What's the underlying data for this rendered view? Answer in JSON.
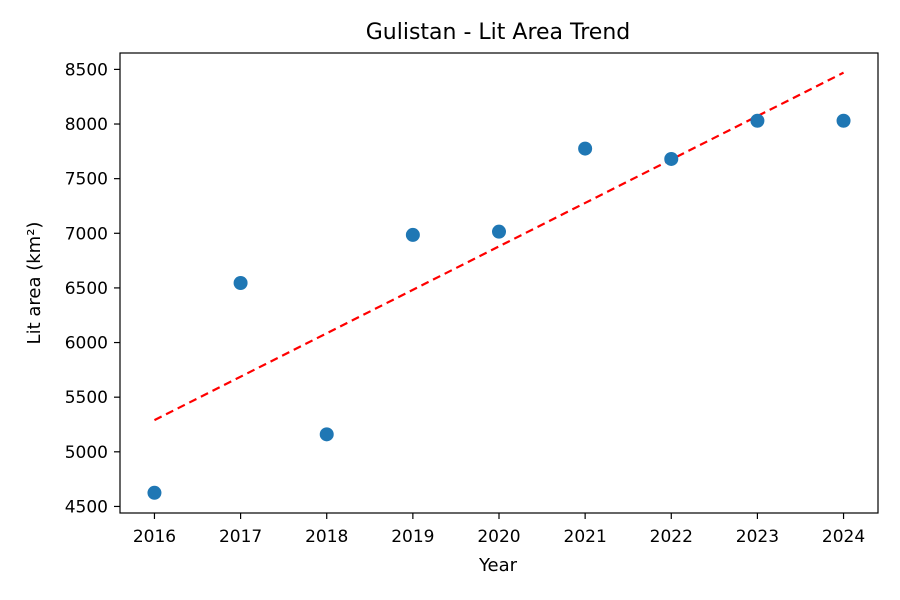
{
  "chart_data": {
    "type": "scatter",
    "title": "Gulistan - Lit Area Trend",
    "xlabel": "Year",
    "ylabel": "Lit area (km²)",
    "xlim": [
      2015.6,
      2024.4
    ],
    "ylim": [
      4440,
      8650
    ],
    "xticks": [
      "2016",
      "2017",
      "2018",
      "2019",
      "2020",
      "2021",
      "2022",
      "2023",
      "2024"
    ],
    "yticks": [
      "4500",
      "5000",
      "5500",
      "6000",
      "6500",
      "7000",
      "7500",
      "8000",
      "8500"
    ],
    "grid": false,
    "colors": {
      "points": "#1f77b4",
      "trend": "#ff0000"
    },
    "points": [
      {
        "x": 2016,
        "y": 4625
      },
      {
        "x": 2017,
        "y": 6545
      },
      {
        "x": 2018,
        "y": 5160
      },
      {
        "x": 2019,
        "y": 6985
      },
      {
        "x": 2020,
        "y": 7015
      },
      {
        "x": 2021,
        "y": 7775
      },
      {
        "x": 2022,
        "y": 7680
      },
      {
        "x": 2023,
        "y": 8030
      },
      {
        "x": 2024,
        "y": 8030
      }
    ],
    "trend_line": {
      "style": "dashed",
      "x": [
        2016,
        2024
      ],
      "y": [
        5290,
        8470
      ]
    }
  }
}
